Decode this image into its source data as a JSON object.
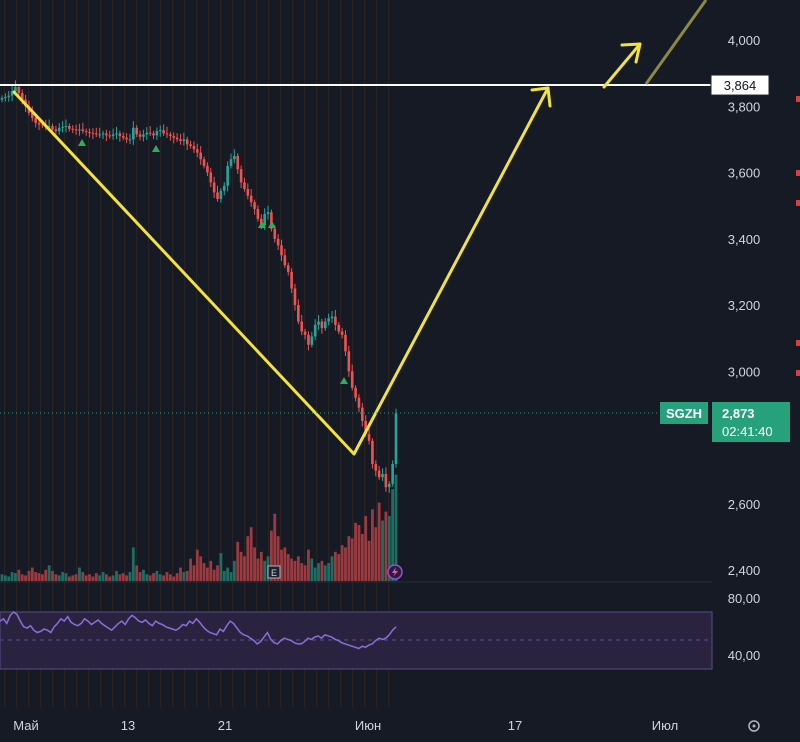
{
  "chart_data": {
    "type": "candlestick",
    "ticker": "SGZH",
    "last_price": "2,873",
    "countdown": "02:41:40",
    "level_label": "3,864",
    "level_value": 3864,
    "price_axis": {
      "ylim": [
        2350,
        4150
      ],
      "ticks": [
        {
          "v": 2400,
          "t": "2,400"
        },
        {
          "v": 2600,
          "t": "2,600"
        },
        {
          "v": 3000,
          "t": "3,000"
        },
        {
          "v": 3200,
          "t": "3,200"
        },
        {
          "v": 3400,
          "t": "3,400"
        },
        {
          "v": 3600,
          "t": "3,600"
        },
        {
          "v": 3800,
          "t": "3,800"
        },
        {
          "v": 4000,
          "t": "4,000"
        }
      ]
    },
    "time_axis": [
      "Май",
      "13",
      "21",
      "Июн",
      "17",
      "Июл"
    ],
    "candles_close": [
      3825,
      3828,
      3832,
      3845,
      3858,
      3840,
      3820,
      3800,
      3780,
      3765,
      3750,
      3745,
      3742,
      3738,
      3740,
      3730,
      3725,
      3735,
      3738,
      3740,
      3732,
      3730,
      3728,
      3730,
      3725,
      3722,
      3720,
      3718,
      3715,
      3715,
      3718,
      3712,
      3710,
      3715,
      3718,
      3710,
      3705,
      3700,
      3700,
      3735,
      3715,
      3708,
      3715,
      3720,
      3718,
      3712,
      3725,
      3728,
      3718,
      3715,
      3710,
      3705,
      3700,
      3695,
      3700,
      3685,
      3680,
      3670,
      3660,
      3640,
      3620,
      3600,
      3570,
      3540,
      3520,
      3545,
      3560,
      3620,
      3640,
      3650,
      3610,
      3570,
      3550,
      3530,
      3510,
      3490,
      3460,
      3440,
      3475,
      3480,
      3430,
      3400,
      3380,
      3350,
      3320,
      3300,
      3250,
      3200,
      3150,
      3120,
      3110,
      3080,
      3105,
      3140,
      3150,
      3130,
      3150,
      3160,
      3165,
      3140,
      3120,
      3110,
      3060,
      3000,
      2950,
      2920,
      2890,
      2850,
      2810,
      2790,
      2720,
      2700,
      2680,
      2690,
      2650,
      2660,
      2720,
      2873
    ],
    "volume_max": 100,
    "volume_ticks": [
      {
        "v": 80,
        "t": "80,00"
      },
      {
        "v": 40,
        "t": "40,00"
      }
    ],
    "volumes": [
      6,
      5,
      4,
      8,
      7,
      10,
      6,
      5,
      9,
      12,
      8,
      7,
      6,
      10,
      14,
      9,
      6,
      5,
      8,
      7,
      4,
      5,
      6,
      12,
      8,
      5,
      6,
      4,
      7,
      5,
      8,
      6,
      4,
      5,
      9,
      6,
      7,
      5,
      8,
      30,
      14,
      8,
      10,
      6,
      5,
      7,
      9,
      6,
      5,
      8,
      6,
      4,
      7,
      12,
      8,
      9,
      20,
      14,
      28,
      22,
      16,
      12,
      18,
      10,
      14,
      25,
      9,
      12,
      8,
      18,
      35,
      26,
      22,
      40,
      48,
      30,
      20,
      26,
      18,
      22,
      45,
      60,
      40,
      28,
      30,
      24,
      20,
      18,
      22,
      16,
      14,
      28,
      20,
      12,
      16,
      18,
      14,
      16,
      22,
      26,
      24,
      32,
      30,
      40,
      38,
      52,
      50,
      42,
      58,
      36,
      64,
      48,
      70,
      54,
      62,
      58,
      82,
      95
    ],
    "rsi": [
      50,
      52,
      48,
      55,
      58,
      56,
      50,
      45,
      44,
      46,
      42,
      40,
      41,
      43,
      42,
      40,
      45,
      48,
      52,
      50,
      54,
      49,
      47,
      46,
      48,
      52,
      50,
      47,
      49,
      51,
      48,
      46,
      44,
      42,
      45,
      48,
      50,
      47,
      52,
      55,
      53,
      50,
      49,
      51,
      48,
      46,
      50,
      48,
      47,
      45,
      44,
      43,
      42,
      44,
      47,
      46,
      50,
      48,
      52,
      49,
      45,
      42,
      40,
      39,
      38,
      43,
      41,
      46,
      50,
      48,
      44,
      40,
      38,
      37,
      35,
      33,
      30,
      32,
      36,
      40,
      34,
      31,
      30,
      33,
      35,
      34,
      33,
      31,
      30,
      30,
      32,
      35,
      34,
      36,
      37,
      35,
      38,
      37,
      36,
      34,
      33,
      31,
      30,
      29,
      28,
      27,
      26,
      28,
      27,
      29,
      30,
      33,
      35,
      34,
      35,
      38,
      42,
      45
    ],
    "annotations": {
      "arrow_labels": []
    }
  }
}
